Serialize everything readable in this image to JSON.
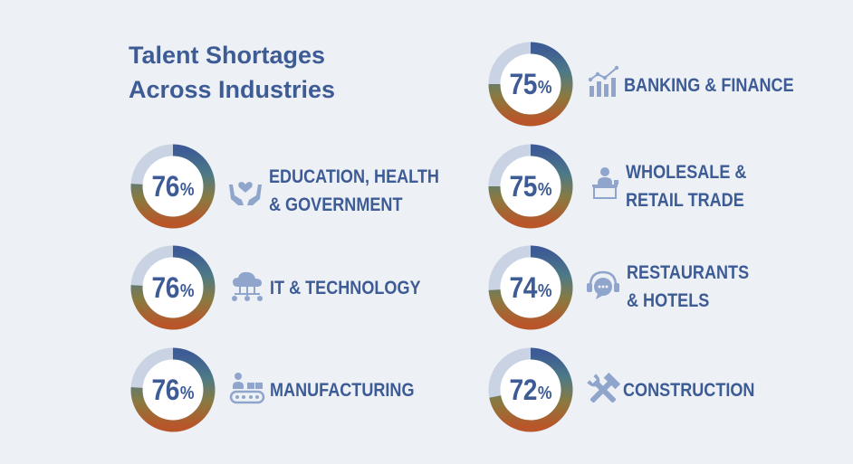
{
  "chart_data": {
    "type": "donut",
    "title_lines": [
      "Talent Shortages",
      "Across Industries"
    ],
    "unit": "%",
    "colors": {
      "track": "#c9d3e3",
      "gradient": [
        "#3d5b95",
        "#4d7a86",
        "#8a7a3f",
        "#b8562a"
      ],
      "text": "#3d5b95",
      "icon": "#8fa5cc"
    },
    "categories": [
      "BANKING & FINANCE",
      "EDUCATION, HEALTH & GOVERNMENT",
      "WHOLESALE & RETAIL TRADE",
      "IT & TECHNOLOGY",
      "RESTAURANTS & HOTELS",
      "MANUFACTURING",
      "CONSTRUCTION"
    ],
    "values": [
      75,
      76,
      75,
      76,
      74,
      76,
      72
    ],
    "items": [
      {
        "id": "banking",
        "value": 75,
        "label_lines": [
          "BANKING & FINANCE"
        ],
        "icon": "chart-growth-icon"
      },
      {
        "id": "education",
        "value": 76,
        "label_lines": [
          "EDUCATION, HEALTH",
          "& GOVERNMENT"
        ],
        "icon": "hands-heart-icon"
      },
      {
        "id": "wholesale",
        "value": 75,
        "label_lines": [
          "WHOLESALE &",
          "RETAIL TRADE"
        ],
        "icon": "shop-counter-icon"
      },
      {
        "id": "it",
        "value": 76,
        "label_lines": [
          "IT & TECHNOLOGY"
        ],
        "icon": "cloud-network-icon"
      },
      {
        "id": "restaurants",
        "value": 74,
        "label_lines": [
          "RESTAURANTS",
          "& HOTELS"
        ],
        "icon": "support-chat-icon"
      },
      {
        "id": "manufacturing",
        "value": 76,
        "label_lines": [
          "MANUFACTURING"
        ],
        "icon": "conveyor-worker-icon"
      },
      {
        "id": "construction",
        "value": 72,
        "label_lines": [
          "CONSTRUCTION"
        ],
        "icon": "wrench-hammer-icon"
      }
    ]
  }
}
